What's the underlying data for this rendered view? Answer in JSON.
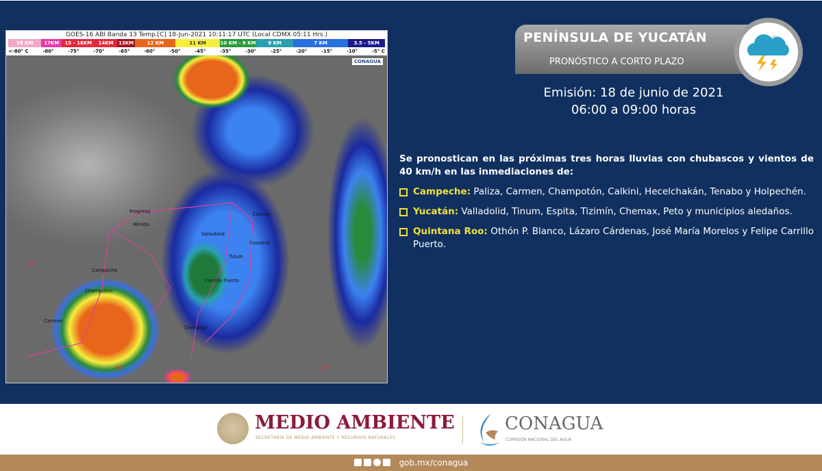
{
  "satellite": {
    "title": "GOES-16 ABI Banda 13 Temp.[C] 18-Jun-2021 10:11:17 UTC (Local CDMX  05:11 Hrs.)",
    "legend": [
      {
        "label": "18 KM",
        "color": "#f4a8c8"
      },
      {
        "label": "17KM",
        "color": "#e43aa4"
      },
      {
        "label": "15 - 16KM",
        "color": "#e4283c"
      },
      {
        "label": "14KM",
        "color": "#e4283c"
      },
      {
        "label": "13KM",
        "color": "#a0141e"
      },
      {
        "label": "12 KM",
        "color": "#e8661c"
      },
      {
        "label": "11 KM",
        "color": "#f6ee3c"
      },
      {
        "label": "10 KM - 9 KM",
        "color": "#2a9a3c"
      },
      {
        "label": "8 KM",
        "color": "#2aa0b0"
      },
      {
        "label": "7 KM",
        "color": "#2a70e0"
      },
      {
        "label": "3.5 - 5KM",
        "color": "#1a1a8a"
      }
    ],
    "temps": [
      "<-80° C",
      "-80°",
      "-75°",
      "-70°",
      "-65°",
      "-60°",
      "-50°",
      "-45°",
      "-35°",
      "-30°",
      "-25°",
      "-20°",
      "-15°",
      "-10°",
      "-5° C"
    ],
    "watermark": "CONAGUA",
    "places": [
      "Progreso",
      "Merida",
      "Valladolid",
      "Cancun",
      "Cozumel",
      "Tulum",
      "Campeche",
      "Champoton",
      "Carrillo Puerto",
      "Carmen",
      "Chetumal"
    ],
    "degrees": [
      "20°",
      "90°",
      "85°"
    ]
  },
  "header": {
    "title": "PENÍNSULA DE YUCATÁN",
    "subtitle": "PRONÓSTICO A CORTO PLAZO",
    "icon": "storm-cloud-lightning-icon"
  },
  "emision": {
    "line1": "Emisión: 18 de junio de 2021",
    "line2": "06:00 a 09:00 horas"
  },
  "forecast": {
    "intro": "Se pronostican en las próximas tres horas lluvias con chubascos y vientos de 40 km/h en las inmediaciones de:",
    "items": [
      {
        "state": "Campeche:",
        "text": " Paliza, Carmen, Champotón, Calkini, Hecelchakán, Tenabo y Holpechén."
      },
      {
        "state": "Yucatán:",
        "text": " Valladolid, Tinum, Espita, Tizimín, Chemax, Peto y municipios aledaños."
      },
      {
        "state": "Quintana Roo:",
        "text": " Othón P. Blanco, Lázaro Cárdenas, José María Morelos y Felipe Carrillo Puerto."
      }
    ]
  },
  "footer": {
    "medio": "MEDIO AMBIENTE",
    "medio_sub": "SECRETARÍA DE MEDIO AMBIENTE Y RECURSOS NATURALES",
    "conagua": "CONAGUA",
    "conagua_sub": "COMISIÓN NACIONAL DEL AGUA",
    "social": [
      "facebook-icon",
      "twitter-icon",
      "instagram-icon",
      "youtube-icon"
    ],
    "url": "gob.mx/conagua"
  }
}
